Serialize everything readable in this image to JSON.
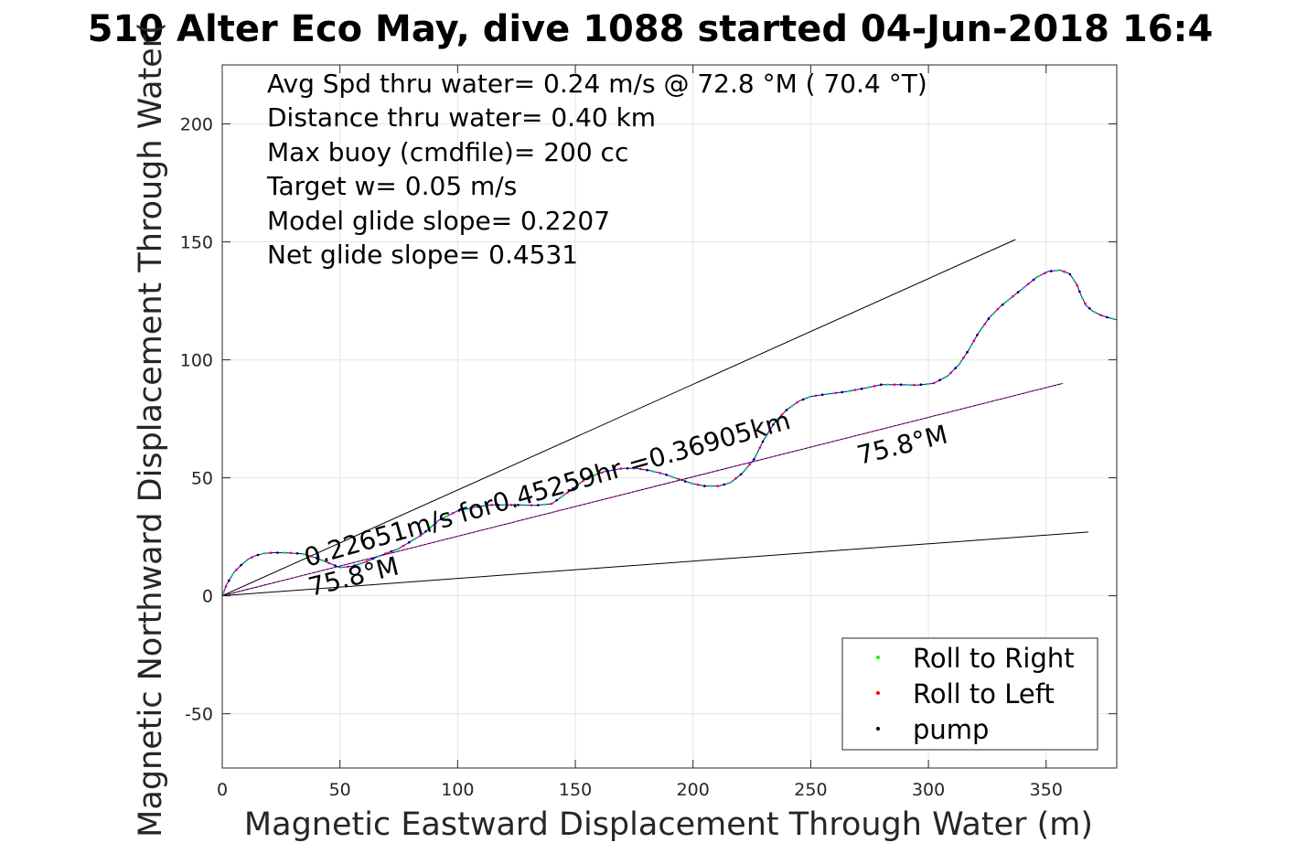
{
  "chart_data": {
    "type": "line",
    "title": "510 Alter Eco May, dive 1088 started 04-Jun-2018 16:4",
    "xlabel": "Magnetic Eastward Displacement Through Water (m)",
    "ylabel": "Magnetic Northward Displacement Through Water(",
    "xlim": [
      0,
      380
    ],
    "ylim": [
      -73,
      225
    ],
    "xticks": [
      0,
      50,
      100,
      150,
      200,
      250,
      300,
      350
    ],
    "yticks": [
      -50,
      0,
      50,
      100,
      150,
      200
    ],
    "grid": true,
    "legend_position": "bottom-right",
    "annotations": [
      "Avg Spd thru water=  0.24 m/s @  72.8 °M ( 70.4 °T)",
      "Distance thru water=  0.40 km",
      "Max buoy (cmdfile)= 200 cc",
      "Target w= 0.05 m/s",
      "Model glide slope= 0.2207",
      "Net glide slope= 0.4531"
    ],
    "line_labels": {
      "speed": "0.22651m/s for0.45259hr =0.36905km",
      "heading_upper": "75.8°M",
      "heading_lower": "75.8°M"
    },
    "series": [
      {
        "name": "track",
        "color": "#0000ff",
        "x": [
          0,
          2,
          5,
          8,
          11,
          14,
          18,
          22,
          28,
          34,
          40,
          45,
          50,
          55,
          60,
          67,
          75,
          85,
          92,
          100,
          107,
          114,
          120,
          127,
          133,
          140,
          147,
          155,
          162,
          170,
          176,
          182,
          188,
          195,
          200,
          205,
          211,
          216,
          221,
          226,
          230,
          235,
          240,
          245,
          250,
          257,
          265,
          273,
          280,
          288,
          295,
          302,
          308,
          313,
          317,
          321,
          326,
          331,
          336,
          341,
          346,
          351,
          356,
          360,
          363,
          365,
          367,
          370,
          373,
          376,
          380
        ],
        "y": [
          0,
          5,
          10,
          13,
          15.5,
          17,
          18,
          18.3,
          18.2,
          17.8,
          16,
          14,
          12,
          12.5,
          14,
          17,
          20,
          26,
          32,
          36,
          37.5,
          38.5,
          38.5,
          38.5,
          38.3,
          39,
          44,
          50,
          52.5,
          54,
          54,
          53,
          51.5,
          49,
          47.5,
          46.5,
          46.5,
          48,
          52,
          58,
          66,
          74,
          79,
          82.5,
          84.5,
          85.5,
          86.5,
          88,
          89.5,
          89.5,
          89.3,
          90,
          93,
          98,
          104,
          111,
          118,
          123,
          127,
          131,
          135,
          137.5,
          138,
          136.5,
          132,
          127,
          123,
          120.5,
          119,
          118,
          117
        ]
      },
      {
        "name": "line_upper",
        "color": "#000000",
        "x": [
          0,
          337
        ],
        "y": [
          0,
          151
        ]
      },
      {
        "name": "line_mid",
        "color": "#000000",
        "x": [
          0,
          357
        ],
        "y": [
          0,
          90
        ]
      },
      {
        "name": "line_lower",
        "color": "#000000",
        "x": [
          0,
          368
        ],
        "y": [
          0,
          27
        ]
      }
    ],
    "legend": [
      {
        "label": "Roll to Right",
        "color": "#00ff00"
      },
      {
        "label": "Roll to Left",
        "color": "#ff0000"
      },
      {
        "label": "pump",
        "color": "#000000"
      }
    ]
  }
}
